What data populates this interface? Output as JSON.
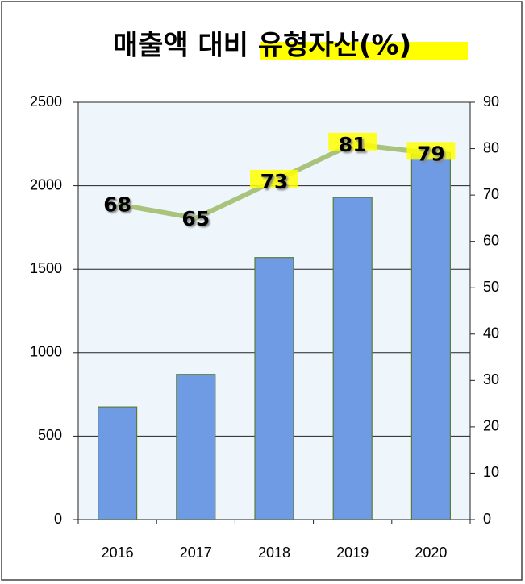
{
  "chart_data": {
    "type": "bar_line",
    "title": "매출액 대비 유형자산(%)",
    "categories": [
      "2016",
      "2017",
      "2018",
      "2019",
      "2020"
    ],
    "series": [
      {
        "type": "bar",
        "color": "#6f9be5",
        "values": [
          675,
          870,
          1570,
          1930,
          2200
        ]
      },
      {
        "type": "line",
        "axis": "y2",
        "color": "#a9c37c",
        "values": [
          68,
          65,
          73,
          81,
          79
        ]
      }
    ],
    "ylim": [
      0,
      2500
    ],
    "yticks": [
      0,
      500,
      1000,
      1500,
      2000,
      2500
    ],
    "y2lim": [
      0,
      90
    ],
    "y2ticks": [
      0,
      10,
      20,
      30,
      40,
      50,
      60,
      70,
      80,
      90
    ],
    "grid": true
  }
}
